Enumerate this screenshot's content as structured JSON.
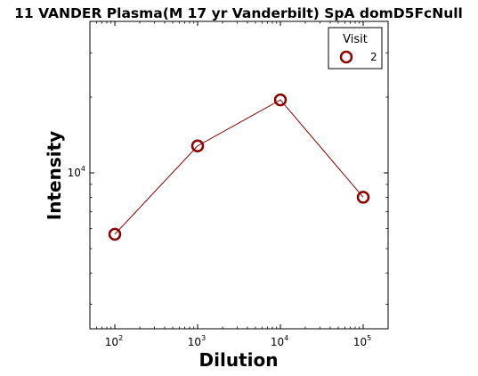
{
  "chart_data": {
    "type": "line",
    "title": "11 VANDER Plasma(M 17 yr Vanderbilt) SpA domD5FcNull",
    "xlabel": "Dilution",
    "ylabel": "Intensity",
    "xscale": "log",
    "yscale": "log",
    "xlim": [
      50,
      200000
    ],
    "ylim": [
      2400,
      40000
    ],
    "x_ticks": [
      {
        "value": 100,
        "base": "10",
        "exp": "2"
      },
      {
        "value": 1000,
        "base": "10",
        "exp": "3"
      },
      {
        "value": 10000,
        "base": "10",
        "exp": "4"
      },
      {
        "value": 100000,
        "base": "10",
        "exp": "5"
      }
    ],
    "y_ticks": [
      {
        "value": 10000,
        "base": "10",
        "exp": "4"
      }
    ],
    "grid": false,
    "legend": {
      "title": "Visit",
      "placement": "top-right"
    },
    "series": [
      {
        "name": "2",
        "color": "#8b0000",
        "marker": "open-circle",
        "x": [
          100,
          1000,
          10000,
          100000
        ],
        "y": [
          5700,
          12800,
          19500,
          8000
        ]
      }
    ]
  }
}
